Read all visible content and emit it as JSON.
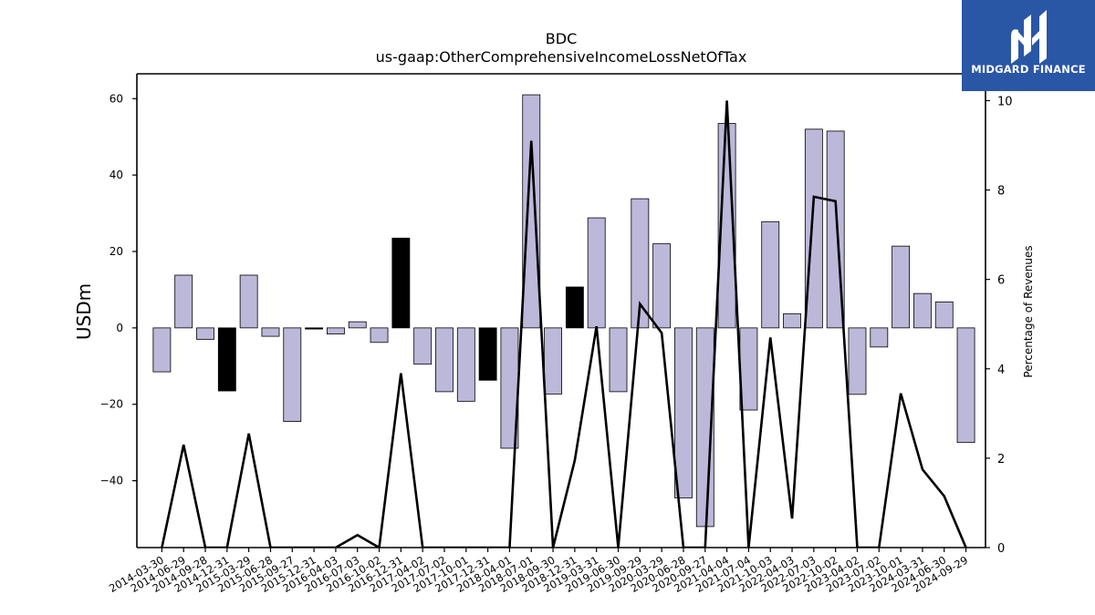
{
  "brand": {
    "name": "MIDGARD FINANCE",
    "bg_color": "#2a56a6",
    "icon": "midgard-m-logo-icon"
  },
  "chart_data": {
    "type": "bar",
    "title": "BDC",
    "subtitle": "us-gaap:OtherComprehensiveIncomeLossNetOfTax",
    "ylabel": "USDm",
    "y2label": "Percentage of Revenues",
    "ylim": [
      -57.5,
      66.5
    ],
    "y2lim": [
      0,
      10.6
    ],
    "yticks": [
      -40,
      -20,
      0,
      20,
      40,
      60
    ],
    "y2ticks": [
      0,
      2,
      4,
      6,
      8,
      10
    ],
    "bar_color_default": "#bcb8d9",
    "bar_color_highlight": "#000000",
    "line_color": "#000000",
    "categories": [
      "2014-03-30",
      "2014-06-29",
      "2014-09-28",
      "2014-12-31",
      "2015-03-29",
      "2015-06-28",
      "2015-09-27",
      "2015-12-31",
      "2016-04-03",
      "2016-07-03",
      "2016-10-02",
      "2016-12-31",
      "2017-04-02",
      "2017-07-02",
      "2017-10-01",
      "2017-12-31",
      "2018-04-01",
      "2018-07-01",
      "2018-09-30",
      "2018-12-31",
      "2019-03-31",
      "2019-06-30",
      "2019-09-29",
      "2020-03-29",
      "2020-06-28",
      "2020-09-27",
      "2021-04-04",
      "2021-07-04",
      "2021-10-03",
      "2022-04-03",
      "2022-07-03",
      "2022-10-02",
      "2023-04-02",
      "2023-07-02",
      "2023-10-01",
      "2024-03-31",
      "2024-06-30",
      "2024-09-29"
    ],
    "series": [
      {
        "kind": "bar",
        "values": [
          -11.5,
          13.8,
          -3.0,
          -16.5,
          13.8,
          -2.2,
          -24.5,
          -0.3,
          -1.6,
          1.6,
          -3.8,
          23.5,
          -9.5,
          -16.7,
          -19.2,
          -13.7,
          -31.5,
          61.0,
          -17.3,
          10.7,
          28.8,
          -16.7,
          33.8,
          22.0,
          -44.5,
          -52.0,
          53.5,
          -21.5,
          27.8,
          3.7,
          52.0,
          51.5,
          -17.4,
          -5.0,
          21.4,
          9.0,
          6.8,
          -30.0
        ],
        "highlight": [
          false,
          false,
          false,
          true,
          false,
          false,
          false,
          true,
          false,
          false,
          false,
          true,
          false,
          false,
          false,
          true,
          false,
          false,
          false,
          true,
          false,
          false,
          false,
          false,
          false,
          false,
          false,
          false,
          false,
          false,
          false,
          false,
          false,
          false,
          false,
          false,
          false,
          false
        ]
      },
      {
        "kind": "line",
        "axis": "right",
        "values": [
          0.0,
          2.3,
          0.0,
          0.0,
          2.55,
          0.0,
          0.0,
          0.0,
          0.0,
          0.28,
          0.0,
          3.9,
          0.0,
          0.0,
          0.0,
          0.0,
          0.0,
          9.1,
          0.0,
          1.95,
          4.95,
          0.0,
          5.45,
          4.8,
          0.0,
          0.0,
          10.0,
          0.0,
          4.7,
          0.65,
          7.85,
          7.75,
          0.0,
          0.0,
          3.45,
          1.75,
          1.15,
          0.0
        ]
      }
    ],
    "grid": false
  }
}
